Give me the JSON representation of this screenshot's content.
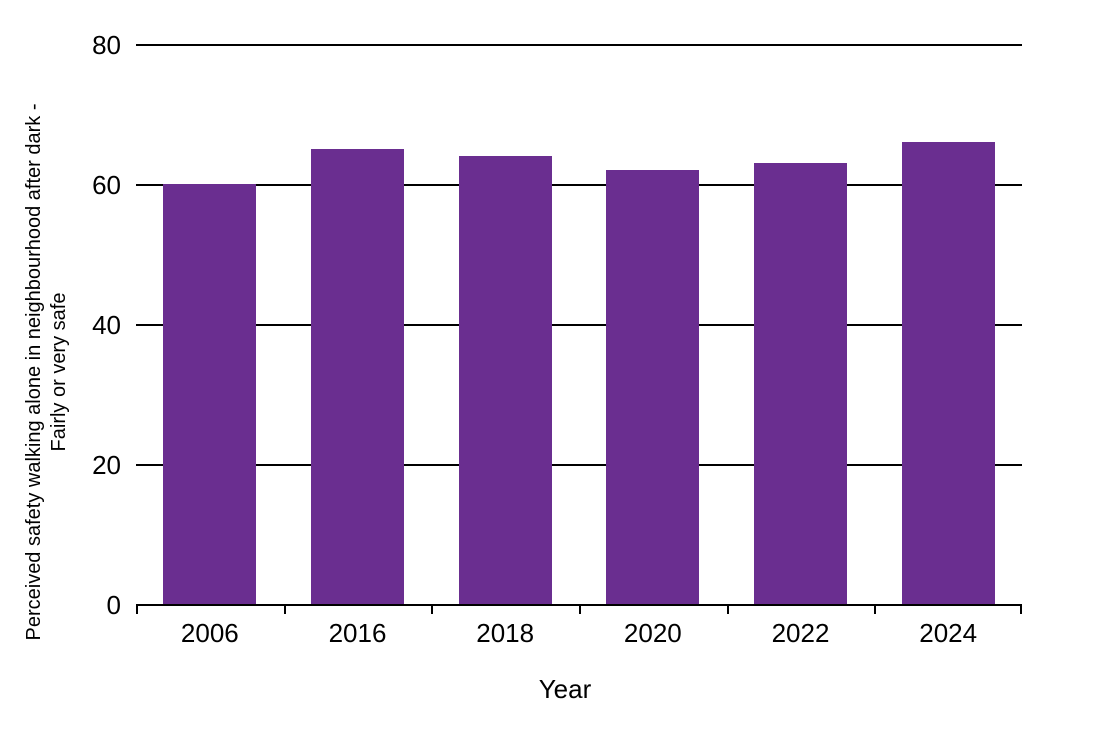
{
  "chart_data": {
    "type": "bar",
    "title": "",
    "categories": [
      "2006",
      "2016",
      "2018",
      "2020",
      "2022",
      "2024"
    ],
    "values": [
      60,
      65,
      64,
      62,
      63,
      66
    ],
    "xlabel": "Year",
    "ylabel": "Perceived safety walking alone in neighbourhood after dark - Fairly or very safe",
    "ylabel_line1": "Perceived safety walking alone in neighbourhood after dark -",
    "ylabel_line2": "Fairly or very safe",
    "ylim": [
      0,
      80
    ],
    "yticks": [
      0,
      20,
      40,
      60,
      80
    ],
    "bar_color": "#6A2E90",
    "axis_color": "#000000",
    "grid": true,
    "legend": false
  }
}
